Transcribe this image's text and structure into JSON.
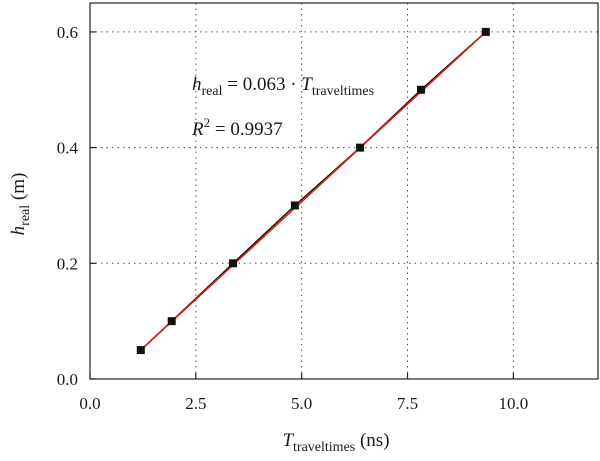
{
  "chart_data": {
    "type": "scatter",
    "xlim": [
      0,
      12
    ],
    "ylim": [
      0,
      0.65
    ],
    "x_ticks": [
      "0.0",
      "2.5",
      "5.0",
      "7.5",
      "10.0"
    ],
    "x_tick_values": [
      0,
      2.5,
      5,
      7.5,
      10
    ],
    "y_ticks": [
      "0.0",
      "0.2",
      "0.4",
      "0.6"
    ],
    "y_tick_values": [
      0,
      0.2,
      0.4,
      0.6
    ],
    "grid": true,
    "xlabel": {
      "main": "T",
      "sub": "traveltimes",
      "unit": " (ns)"
    },
    "ylabel": {
      "main": "h",
      "sub": "real",
      "unit": " (m)"
    },
    "annotations": {
      "equation": {
        "lhs": "h",
        "lhs_sub": "real",
        "mid": " = 0.063 · ",
        "rhs": "T",
        "rhs_sub": "traveltimes"
      },
      "r_squared": {
        "var": "R",
        "sup": "2",
        "rest": " = 0.9937"
      }
    },
    "series": [
      {
        "x": [
          1.2,
          1.93,
          3.38,
          4.84,
          6.38,
          7.82,
          9.35
        ],
        "y": [
          0.05,
          0.1,
          0.2,
          0.3,
          0.4,
          0.5,
          0.6
        ],
        "marker": "square",
        "color": "#111111"
      }
    ],
    "fit_line": {
      "x": [
        1.2,
        9.35
      ],
      "y": [
        0.05,
        0.6
      ],
      "color": "#e0201b"
    }
  }
}
